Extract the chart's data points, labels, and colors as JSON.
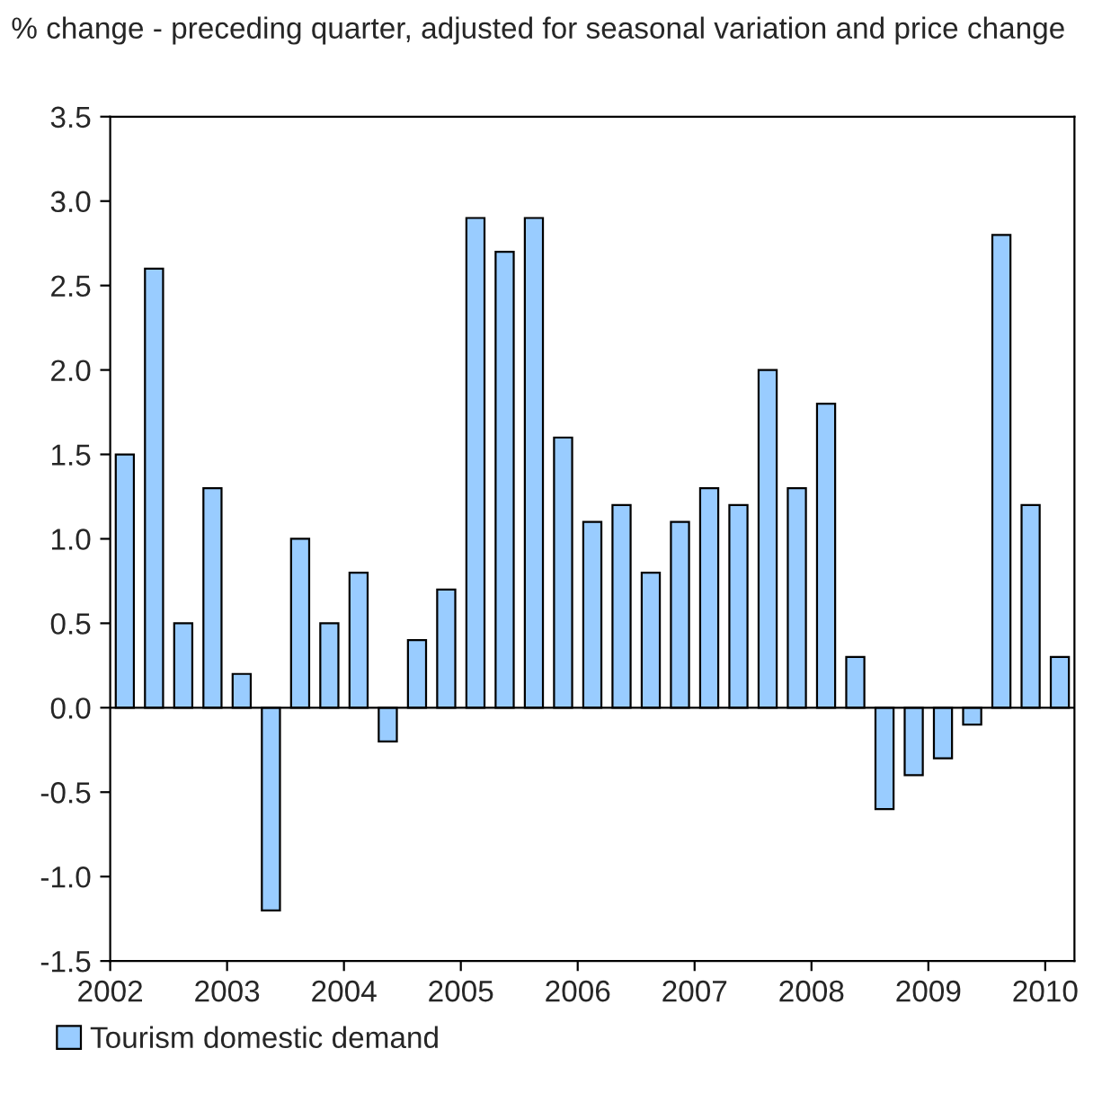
{
  "chart_data": {
    "type": "bar",
    "title": "% change - preceding quarter, adjusted for seasonal variation and price change",
    "x": [
      2002.125,
      2002.375,
      2002.625,
      2002.875,
      2003.125,
      2003.375,
      2003.625,
      2003.875,
      2004.125,
      2004.375,
      2004.625,
      2004.875,
      2005.125,
      2005.375,
      2005.625,
      2005.875,
      2006.125,
      2006.375,
      2006.625,
      2006.875,
      2007.125,
      2007.375,
      2007.625,
      2007.875,
      2008.125,
      2008.375,
      2008.625,
      2008.875,
      2009.125,
      2009.375,
      2009.625,
      2009.875,
      2010.125
    ],
    "series": [
      {
        "name": "Tourism domestic demand",
        "color": "#99ccff",
        "values": [
          1.5,
          2.6,
          0.5,
          1.3,
          0.2,
          -1.2,
          1.0,
          0.5,
          0.8,
          -0.2,
          0.4,
          0.7,
          2.9,
          2.7,
          2.9,
          1.6,
          1.1,
          1.2,
          0.8,
          1.1,
          1.3,
          1.2,
          2.0,
          1.3,
          1.8,
          0.3,
          -0.6,
          -0.4,
          -0.3,
          -0.1,
          2.8,
          1.2,
          0.3
        ]
      }
    ],
    "xlim": [
      2002,
      2010.25
    ],
    "xticks": [
      2002,
      2003,
      2004,
      2005,
      2006,
      2007,
      2008,
      2009,
      2010
    ],
    "ylim": [
      -1.5,
      3.5
    ],
    "yticks": [
      {
        "value": -1.5,
        "label": "-1.5"
      },
      {
        "value": -1.0,
        "label": "-1.0"
      },
      {
        "value": -0.5,
        "label": "-0.5"
      },
      {
        "value": 0.0,
        "label": "0.0"
      },
      {
        "value": 0.5,
        "label": "0.5"
      },
      {
        "value": 1.0,
        "label": "1.0"
      },
      {
        "value": 1.5,
        "label": "1.5"
      },
      {
        "value": 2.0,
        "label": "2.0"
      },
      {
        "value": 2.5,
        "label": "2.5"
      },
      {
        "value": 3.0,
        "label": "3.0"
      },
      {
        "value": 3.5,
        "label": "3.5"
      }
    ],
    "ref_lines": [
      {
        "axis": "y",
        "value": 0,
        "color": "#000000"
      }
    ],
    "legend": "bottom"
  }
}
